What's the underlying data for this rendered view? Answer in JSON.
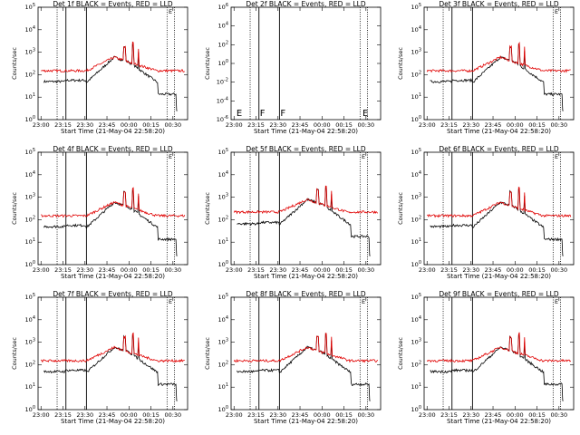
{
  "colors": {
    "events": "#000000",
    "lld": "#e00000",
    "background": "#ffffff"
  },
  "x_tick_labels": [
    "23:00",
    "23:15",
    "23:30",
    "23:45",
    "00:00",
    "00:15",
    "00:30"
  ],
  "chart_data": [
    {
      "type": "line",
      "title": "Det 1f BLACK = Events, RED = LLD",
      "ylabel": "Counts/sec",
      "xlabel": "Start Time (21-May-04 22:58:20)",
      "yscale": "log",
      "ylim": [
        1,
        100000
      ],
      "ytick_exponents": [
        0,
        1,
        2,
        3,
        4,
        5
      ],
      "profile": "A",
      "series": [
        {
          "name": "Events",
          "peak": 600
        },
        {
          "name": "LLD",
          "peak": 600
        }
      ]
    },
    {
      "type": "line",
      "title": "Det 2f BLACK = Events, RED = LLD",
      "ylabel": "Counts/sec",
      "xlabel": "Start Time (21-May-04 22:58:20)",
      "yscale": "log",
      "ylim": [
        1e-06,
        1000000
      ],
      "ytick_exponents": [
        -6,
        -4,
        -2,
        0,
        2,
        4,
        6
      ],
      "profile": "empty",
      "markers": [
        {
          "label": "E",
          "time": "23:01"
        },
        {
          "label": "F",
          "time": "23:17"
        },
        {
          "label": "F",
          "time": "23:31"
        },
        {
          "label": "E",
          "time": "00:27"
        }
      ],
      "series": []
    },
    {
      "type": "line",
      "title": "Det 3f BLACK = Events, RED = LLD",
      "ylabel": "Counts/sec",
      "xlabel": "Start Time (21-May-04 22:58:20)",
      "yscale": "log",
      "ylim": [
        1,
        100000
      ],
      "ytick_exponents": [
        0,
        1,
        2,
        3,
        4,
        5
      ],
      "profile": "A",
      "series": [
        {
          "name": "Events",
          "peak": 600
        },
        {
          "name": "LLD",
          "peak": 600
        }
      ]
    },
    {
      "type": "line",
      "title": "Det 4f BLACK = Events, RED = LLD",
      "ylabel": "Counts/sec",
      "xlabel": "Start Time (21-May-04 22:58:20)",
      "yscale": "log",
      "ylim": [
        1,
        100000
      ],
      "ytick_exponents": [
        0,
        1,
        2,
        3,
        4,
        5
      ],
      "profile": "A",
      "series": [
        {
          "name": "Events",
          "peak": 600
        },
        {
          "name": "LLD",
          "peak": 600
        }
      ]
    },
    {
      "type": "line",
      "title": "Det 5f BLACK = Events, RED = LLD",
      "ylabel": "Counts/sec",
      "xlabel": "Start Time (21-May-04 22:58:20)",
      "yscale": "log",
      "ylim": [
        1,
        100000
      ],
      "ytick_exponents": [
        0,
        1,
        2,
        3,
        4,
        5
      ],
      "profile": "B",
      "series": [
        {
          "name": "Events",
          "peak": 800
        },
        {
          "name": "LLD",
          "peak": 800
        }
      ]
    },
    {
      "type": "line",
      "title": "Det 6f BLACK = Events, RED = LLD",
      "ylabel": "Counts/sec",
      "xlabel": "Start Time (21-May-04 22:58:20)",
      "yscale": "log",
      "ylim": [
        1,
        100000
      ],
      "ytick_exponents": [
        0,
        1,
        2,
        3,
        4,
        5
      ],
      "profile": "A",
      "series": [
        {
          "name": "Events",
          "peak": 600
        },
        {
          "name": "LLD",
          "peak": 600
        }
      ]
    },
    {
      "type": "line",
      "title": "Det 7f BLACK = Events, RED = LLD",
      "ylabel": "Counts/sec",
      "xlabel": "Start Time (21-May-04 22:58:20)",
      "yscale": "log",
      "ylim": [
        1,
        100000
      ],
      "ytick_exponents": [
        0,
        1,
        2,
        3,
        4,
        5
      ],
      "profile": "A",
      "series": [
        {
          "name": "Events",
          "peak": 600
        },
        {
          "name": "LLD",
          "peak": 600
        }
      ]
    },
    {
      "type": "line",
      "title": "Det 8f BLACK = Events, RED = LLD",
      "ylabel": "Counts/sec",
      "xlabel": "Start Time (21-May-04 22:58:20)",
      "yscale": "log",
      "ylim": [
        1,
        100000
      ],
      "ytick_exponents": [
        0,
        1,
        2,
        3,
        4,
        5
      ],
      "profile": "A",
      "series": [
        {
          "name": "Events",
          "peak": 600
        },
        {
          "name": "LLD",
          "peak": 600
        }
      ]
    },
    {
      "type": "line",
      "title": "Det 9f BLACK = Events, RED = LLD",
      "ylabel": "Counts/sec",
      "xlabel": "Start Time (21-May-04 22:58:20)",
      "yscale": "log",
      "ylim": [
        1,
        100000
      ],
      "ytick_exponents": [
        0,
        1,
        2,
        3,
        4,
        5
      ],
      "profile": "A",
      "series": [
        {
          "name": "Events",
          "peak": 600
        },
        {
          "name": "LLD",
          "peak": 600
        }
      ]
    }
  ],
  "events": {
    "vlines_solid": [
      "23:17",
      "23:31"
    ],
    "vlines_dotted": [
      "23:11",
      "00:26",
      "00:31"
    ],
    "corner_marker": "E"
  }
}
